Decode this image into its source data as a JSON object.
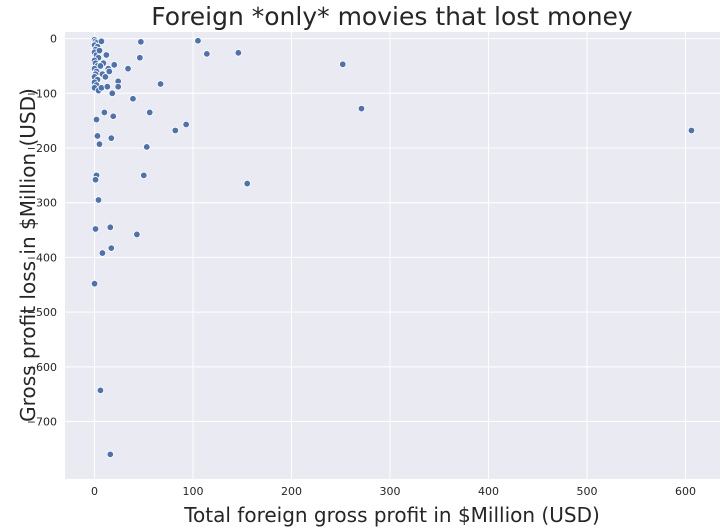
{
  "chart_data": {
    "type": "scatter",
    "title": "Foreign *only* movies that lost money",
    "xlabel": "Total foreign gross profit in $Million (USD)",
    "ylabel": "Gross profit loss in $Million (USD)",
    "xlim": [
      -30,
      635
    ],
    "ylim": [
      -805,
      12
    ],
    "x_ticks": [
      0,
      100,
      200,
      300,
      400,
      500,
      600
    ],
    "y_ticks": [
      0,
      -100,
      -200,
      -300,
      -400,
      -500,
      -600,
      -700
    ],
    "x_tick_labels": [
      "0",
      "100",
      "200",
      "300",
      "400",
      "500",
      "600"
    ],
    "y_tick_labels": [
      "0",
      "−100",
      "−200",
      "−300",
      "−400",
      "−500",
      "−600",
      "−700"
    ],
    "grid": true,
    "legend": "none",
    "colors": {
      "background": "#eaeaf2",
      "grid": "#ffffff",
      "marker": "#4c72b0",
      "marker_edge": "#ffffff"
    },
    "points": [
      {
        "x": 0,
        "y": -2
      },
      {
        "x": 1,
        "y": -5
      },
      {
        "x": 2,
        "y": -8
      },
      {
        "x": 0,
        "y": -12
      },
      {
        "x": 3,
        "y": -15
      },
      {
        "x": 1,
        "y": -20
      },
      {
        "x": 0,
        "y": -25
      },
      {
        "x": 2,
        "y": -30
      },
      {
        "x": 4,
        "y": -35
      },
      {
        "x": 0,
        "y": -40
      },
      {
        "x": 1,
        "y": -45
      },
      {
        "x": 3,
        "y": -50
      },
      {
        "x": 0,
        "y": -55
      },
      {
        "x": 2,
        "y": -60
      },
      {
        "x": 1,
        "y": -65
      },
      {
        "x": 0,
        "y": -70
      },
      {
        "x": 3,
        "y": -75
      },
      {
        "x": 0,
        "y": -80
      },
      {
        "x": 2,
        "y": -85
      },
      {
        "x": 0,
        "y": -90
      },
      {
        "x": 4,
        "y": -95
      },
      {
        "x": 7,
        "y": -5
      },
      {
        "x": 5,
        "y": -22
      },
      {
        "x": 12,
        "y": -30
      },
      {
        "x": 9,
        "y": -45
      },
      {
        "x": 6,
        "y": -50
      },
      {
        "x": 14,
        "y": -55
      },
      {
        "x": 8,
        "y": -65
      },
      {
        "x": 11,
        "y": -70
      },
      {
        "x": 7,
        "y": -90
      },
      {
        "x": 13,
        "y": -88
      },
      {
        "x": 20,
        "y": -48
      },
      {
        "x": 18,
        "y": -100
      },
      {
        "x": 24,
        "y": -78
      },
      {
        "x": 24,
        "y": -88
      },
      {
        "x": 15,
        "y": -60
      },
      {
        "x": 10,
        "y": -135
      },
      {
        "x": 2,
        "y": -148
      },
      {
        "x": 3,
        "y": -178
      },
      {
        "x": 5,
        "y": -193
      },
      {
        "x": 17,
        "y": -182
      },
      {
        "x": 19,
        "y": -142
      },
      {
        "x": 34,
        "y": -55
      },
      {
        "x": 39,
        "y": -110
      },
      {
        "x": 46,
        "y": -35
      },
      {
        "x": 47,
        "y": -6
      },
      {
        "x": 56,
        "y": -135
      },
      {
        "x": 53,
        "y": -198
      },
      {
        "x": 50,
        "y": -250
      },
      {
        "x": 67,
        "y": -83
      },
      {
        "x": 82,
        "y": -168
      },
      {
        "x": 93,
        "y": -157
      },
      {
        "x": 105,
        "y": -4
      },
      {
        "x": 114,
        "y": -28
      },
      {
        "x": 146,
        "y": -26
      },
      {
        "x": 155,
        "y": -265
      },
      {
        "x": 252,
        "y": -47
      },
      {
        "x": 271,
        "y": -128
      },
      {
        "x": 606,
        "y": -168
      },
      {
        "x": 2,
        "y": -250
      },
      {
        "x": 1,
        "y": -258
      },
      {
        "x": 4,
        "y": -295
      },
      {
        "x": 1,
        "y": -348
      },
      {
        "x": 16,
        "y": -345
      },
      {
        "x": 17,
        "y": -383
      },
      {
        "x": 8,
        "y": -392
      },
      {
        "x": 43,
        "y": -358
      },
      {
        "x": 0,
        "y": -448
      },
      {
        "x": 6,
        "y": -643
      },
      {
        "x": 16,
        "y": -760
      }
    ]
  }
}
